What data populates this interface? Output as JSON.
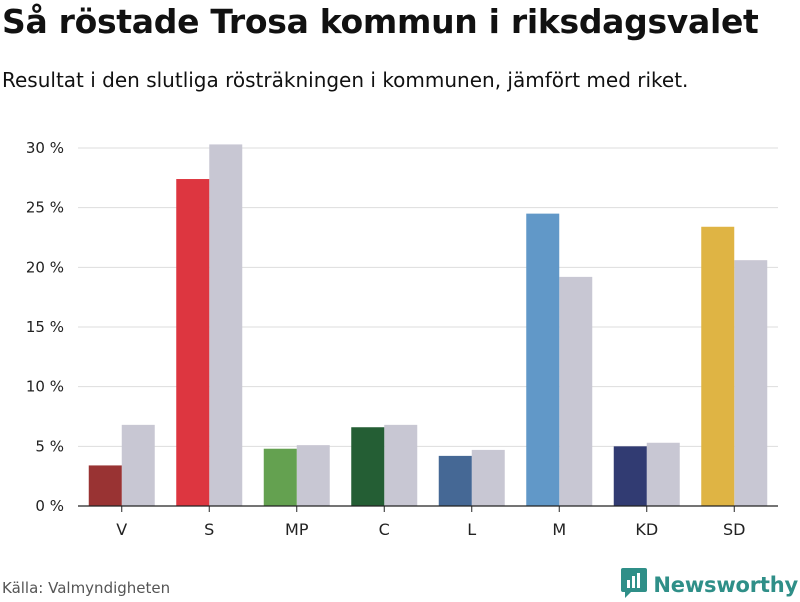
{
  "header": {
    "title": "Så röstade Trosa kommun i riksdagsvalet",
    "subtitle": "Resultat i den slutliga rösträkningen i kommunen, jämfört med riket."
  },
  "footer": {
    "source": "Källa: Valmyndigheten",
    "brand": "Newsworthy",
    "brand_icon": "bar-chart-logo-icon"
  },
  "colors": {
    "comparison": "#c8c7d3",
    "grid": "#dddddd",
    "brand": "#2f8f88"
  },
  "chart_data": {
    "type": "bar",
    "title": "Så röstade Trosa kommun i riksdagsvalet",
    "subtitle": "Resultat i den slutliga rösträkningen i kommunen, jämfört med riket.",
    "categories": [
      "V",
      "S",
      "MP",
      "C",
      "L",
      "M",
      "KD",
      "SD"
    ],
    "series": [
      {
        "values": [
          3.4,
          27.4,
          4.8,
          6.6,
          4.2,
          24.5,
          5.0,
          23.4
        ],
        "colors": [
          "#993333",
          "#dd3640",
          "#64a150",
          "#245e34",
          "#456895",
          "#6198c8",
          "#313b72",
          "#dfb444"
        ]
      },
      {
        "values": [
          6.8,
          30.3,
          5.1,
          6.8,
          4.7,
          19.2,
          5.3,
          20.6
        ],
        "color": "#c8c7d3"
      }
    ],
    "ylim": [
      0,
      30
    ],
    "yticks": [
      0,
      5,
      10,
      15,
      20,
      25,
      30
    ],
    "ytick_suffix": " %",
    "grid": true,
    "legend": "none"
  }
}
